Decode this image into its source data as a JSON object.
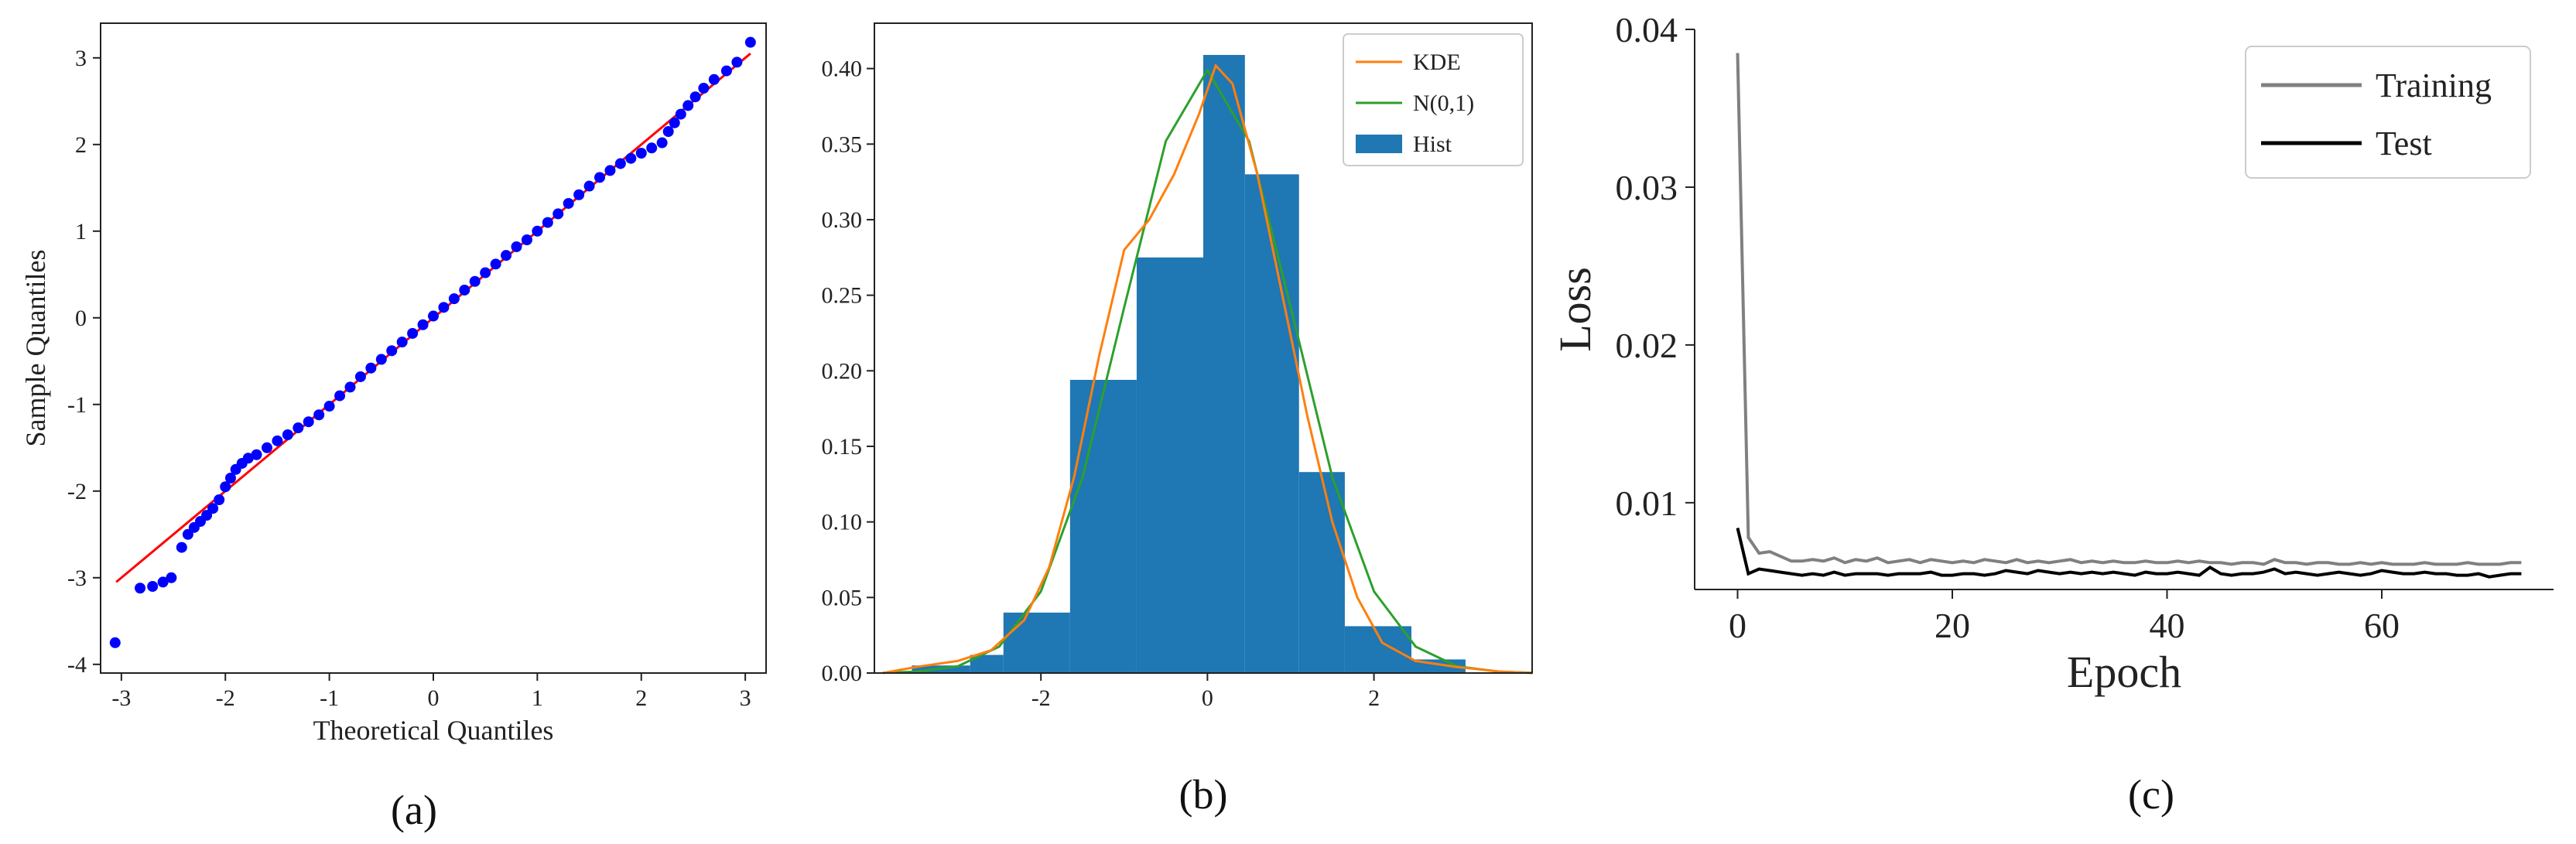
{
  "captions": [
    "(a)",
    "(b)",
    "(c)"
  ],
  "chart_data": [
    {
      "type": "scatter",
      "title": "",
      "xlabel": "Theoretical Quantiles",
      "ylabel": "Sample Quantiles",
      "xlim": [
        -3.2,
        3.2
      ],
      "ylim": [
        -4.1,
        3.4
      ],
      "xticks": [
        -3,
        -2,
        -1,
        0,
        1,
        2,
        3
      ],
      "yticks": [
        -4,
        -3,
        -2,
        -1,
        0,
        1,
        2,
        3
      ],
      "grid": false,
      "colors": {
        "points": "#0000ff",
        "line": "#ff0000"
      },
      "reference_line": {
        "x": [
          -3.05,
          3.05
        ],
        "y": [
          -3.05,
          3.05
        ]
      },
      "series": [
        {
          "x": [
            -3.06,
            -2.82,
            -2.7,
            -2.6,
            -2.52,
            -2.42,
            -2.36,
            -2.3,
            -2.24,
            -2.18,
            -2.12,
            -2.06,
            -2.0,
            -1.95,
            -1.9,
            -1.84,
            -1.78,
            -1.7,
            -1.6,
            -1.5,
            -1.4,
            -1.3,
            -1.2,
            -1.1,
            -1.0,
            -0.9,
            -0.8,
            -0.7,
            -0.6,
            -0.5,
            -0.4,
            -0.3,
            -0.2,
            -0.1,
            0.0,
            0.1,
            0.2,
            0.3,
            0.4,
            0.5,
            0.6,
            0.7,
            0.8,
            0.9,
            1.0,
            1.1,
            1.2,
            1.3,
            1.4,
            1.5,
            1.6,
            1.7,
            1.8,
            1.9,
            2.0,
            2.1,
            2.2,
            2.26,
            2.32,
            2.38,
            2.45,
            2.52,
            2.6,
            2.7,
            2.82,
            2.92,
            3.05
          ],
          "y": [
            -3.75,
            -3.12,
            -3.1,
            -3.05,
            -3.0,
            -2.65,
            -2.5,
            -2.42,
            -2.35,
            -2.28,
            -2.2,
            -2.1,
            -1.95,
            -1.85,
            -1.75,
            -1.68,
            -1.62,
            -1.58,
            -1.5,
            -1.42,
            -1.35,
            -1.27,
            -1.2,
            -1.12,
            -1.02,
            -0.9,
            -0.8,
            -0.68,
            -0.58,
            -0.48,
            -0.38,
            -0.28,
            -0.18,
            -0.08,
            0.02,
            0.12,
            0.22,
            0.32,
            0.42,
            0.52,
            0.62,
            0.72,
            0.82,
            0.9,
            1.0,
            1.1,
            1.2,
            1.32,
            1.42,
            1.52,
            1.62,
            1.7,
            1.78,
            1.84,
            1.9,
            1.96,
            2.02,
            2.15,
            2.25,
            2.35,
            2.45,
            2.55,
            2.65,
            2.75,
            2.85,
            2.95,
            3.18
          ]
        }
      ]
    },
    {
      "type": "bar",
      "title": "",
      "xlabel": "",
      "ylabel": "",
      "xlim": [
        -4.0,
        3.9
      ],
      "ylim": [
        0,
        0.43
      ],
      "xticks": [
        -2,
        0,
        2
      ],
      "yticks": [
        0.0,
        0.05,
        0.1,
        0.15,
        0.2,
        0.25,
        0.3,
        0.35,
        0.4
      ],
      "grid": false,
      "legend_position": "top-right",
      "legend": [
        "KDE",
        "N(0,1)",
        "Hist"
      ],
      "colors": {
        "hist": "#1f77b4",
        "kde": "#ff7f0e",
        "normal": "#2ca02c"
      },
      "bin_edges": [
        -3.55,
        -2.85,
        -2.45,
        -1.65,
        -0.85,
        -0.05,
        0.45,
        1.1,
        1.65,
        2.45,
        3.1
      ],
      "values": [
        0.005,
        0.012,
        0.04,
        0.194,
        0.275,
        0.409,
        0.33,
        0.133,
        0.031,
        0.009
      ],
      "series": [
        {
          "name": "KDE",
          "x": [
            -3.9,
            -3.5,
            -3.0,
            -2.6,
            -2.2,
            -1.9,
            -1.6,
            -1.3,
            -1.0,
            -0.7,
            -0.4,
            -0.1,
            0.1,
            0.3,
            0.6,
            0.9,
            1.2,
            1.5,
            1.8,
            2.1,
            2.5,
            3.0,
            3.5,
            3.9
          ],
          "y": [
            0.0,
            0.004,
            0.008,
            0.015,
            0.035,
            0.07,
            0.13,
            0.21,
            0.28,
            0.3,
            0.33,
            0.37,
            0.402,
            0.39,
            0.33,
            0.25,
            0.17,
            0.1,
            0.05,
            0.02,
            0.008,
            0.004,
            0.001,
            0.0
          ]
        },
        {
          "name": "N(0,1)",
          "x": [
            -3.9,
            -3.5,
            -3.0,
            -2.5,
            -2.0,
            -1.5,
            -1.0,
            -0.5,
            0.0,
            0.5,
            1.0,
            1.5,
            2.0,
            2.5,
            3.0,
            3.5,
            3.9
          ],
          "y": [
            0.0002,
            0.0009,
            0.0044,
            0.0175,
            0.054,
            0.1295,
            0.242,
            0.352,
            0.399,
            0.352,
            0.242,
            0.1295,
            0.054,
            0.0175,
            0.0044,
            0.0009,
            0.0002
          ]
        }
      ]
    },
    {
      "type": "line",
      "title": "",
      "xlabel": "Epoch",
      "ylabel": "Loss",
      "xlim": [
        -4,
        76
      ],
      "ylim": [
        0.0045,
        0.04
      ],
      "xticks": [
        0,
        20,
        40,
        60
      ],
      "yticks": [
        0.01,
        0.02,
        0.03,
        0.04
      ],
      "grid": false,
      "legend_position": "top-right",
      "legend": [
        "Training",
        "Test"
      ],
      "colors": {
        "training": "#808080",
        "test": "#000000"
      },
      "series": [
        {
          "name": "Training",
          "x": [
            0,
            1,
            2,
            3,
            4,
            5,
            6,
            7,
            8,
            9,
            10,
            11,
            12,
            13,
            14,
            15,
            16,
            17,
            18,
            19,
            20,
            21,
            22,
            23,
            24,
            25,
            26,
            27,
            28,
            29,
            30,
            31,
            32,
            33,
            34,
            35,
            36,
            37,
            38,
            39,
            40,
            41,
            42,
            43,
            44,
            45,
            46,
            47,
            48,
            49,
            50,
            51,
            52,
            53,
            54,
            55,
            56,
            57,
            58,
            59,
            60,
            61,
            62,
            63,
            64,
            65,
            66,
            67,
            68,
            69,
            70,
            71,
            72,
            73
          ],
          "y": [
            0.0385,
            0.0078,
            0.0068,
            0.0069,
            0.0066,
            0.0063,
            0.0063,
            0.0064,
            0.0063,
            0.0065,
            0.0062,
            0.0064,
            0.0063,
            0.0065,
            0.0062,
            0.0063,
            0.0064,
            0.0062,
            0.0064,
            0.0063,
            0.0062,
            0.0063,
            0.0062,
            0.0064,
            0.0063,
            0.0062,
            0.0064,
            0.0062,
            0.0063,
            0.0062,
            0.0063,
            0.0064,
            0.0062,
            0.0063,
            0.0062,
            0.0063,
            0.0062,
            0.0062,
            0.0063,
            0.0062,
            0.0062,
            0.0063,
            0.0062,
            0.0063,
            0.0062,
            0.0062,
            0.0061,
            0.0062,
            0.0062,
            0.0061,
            0.0064,
            0.0062,
            0.0062,
            0.0061,
            0.0062,
            0.0062,
            0.0061,
            0.0061,
            0.0062,
            0.0061,
            0.0062,
            0.0061,
            0.0061,
            0.0061,
            0.0062,
            0.0061,
            0.0061,
            0.0061,
            0.0062,
            0.0061,
            0.0061,
            0.0061,
            0.0062,
            0.0062
          ]
        },
        {
          "name": "Test",
          "x": [
            0,
            1,
            2,
            3,
            4,
            5,
            6,
            7,
            8,
            9,
            10,
            11,
            12,
            13,
            14,
            15,
            16,
            17,
            18,
            19,
            20,
            21,
            22,
            23,
            24,
            25,
            26,
            27,
            28,
            29,
            30,
            31,
            32,
            33,
            34,
            35,
            36,
            37,
            38,
            39,
            40,
            41,
            42,
            43,
            44,
            45,
            46,
            47,
            48,
            49,
            50,
            51,
            52,
            53,
            54,
            55,
            56,
            57,
            58,
            59,
            60,
            61,
            62,
            63,
            64,
            65,
            66,
            67,
            68,
            69,
            70,
            71,
            72,
            73
          ],
          "y": [
            0.0084,
            0.0055,
            0.0058,
            0.0057,
            0.0056,
            0.0055,
            0.0054,
            0.0055,
            0.0054,
            0.0056,
            0.0054,
            0.0055,
            0.0055,
            0.0055,
            0.0054,
            0.0055,
            0.0055,
            0.0055,
            0.0056,
            0.0054,
            0.0054,
            0.0055,
            0.0055,
            0.0054,
            0.0055,
            0.0057,
            0.0056,
            0.0055,
            0.0057,
            0.0056,
            0.0055,
            0.0056,
            0.0055,
            0.0056,
            0.0055,
            0.0056,
            0.0055,
            0.0054,
            0.0056,
            0.0055,
            0.0055,
            0.0056,
            0.0055,
            0.0054,
            0.0059,
            0.0055,
            0.0054,
            0.0055,
            0.0055,
            0.0056,
            0.0058,
            0.0055,
            0.0056,
            0.0055,
            0.0054,
            0.0055,
            0.0056,
            0.0055,
            0.0054,
            0.0055,
            0.0057,
            0.0056,
            0.0055,
            0.0055,
            0.0056,
            0.0055,
            0.0055,
            0.0054,
            0.0054,
            0.0055,
            0.0053,
            0.0054,
            0.0055,
            0.0055
          ]
        }
      ]
    }
  ]
}
